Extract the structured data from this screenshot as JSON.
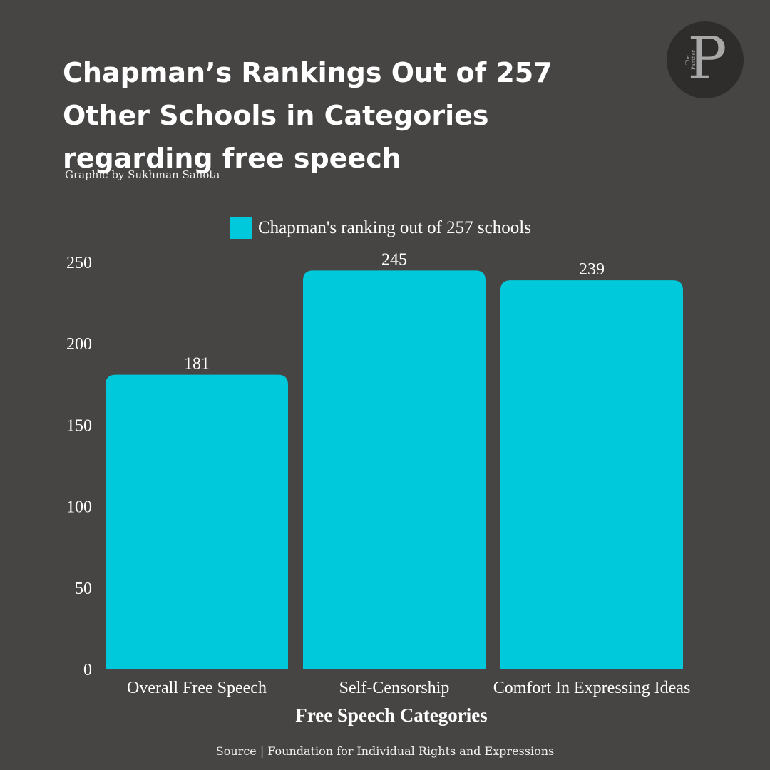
{
  "header": {
    "title": "Chapman’s Rankings Out of 257 Other Schools in Categories regarding free speech",
    "credit": "Graphic by Sukhman Sahota",
    "logo_letter": "P",
    "logo_small_text": "The Panther"
  },
  "footer": {
    "source": "Source | Foundation for Individual Rights and Expressions"
  },
  "colors": {
    "background": "#474544",
    "bar": "#00c9db",
    "text": "#ffffff"
  },
  "chart_data": {
    "type": "bar",
    "categories": [
      "Overall Free Speech",
      "Self-Censorship",
      "Comfort In Expressing Ideas"
    ],
    "series": [
      {
        "name": "Chapman's ranking out of 257 schools",
        "values": [
          181,
          245,
          239
        ]
      }
    ],
    "xlabel": "Free Speech Categories",
    "ylabel": "",
    "ylim": [
      0,
      250
    ],
    "yticks": [
      0,
      50,
      100,
      150,
      200,
      250
    ],
    "data_labels": true,
    "grid": false,
    "legend": "top-center"
  }
}
